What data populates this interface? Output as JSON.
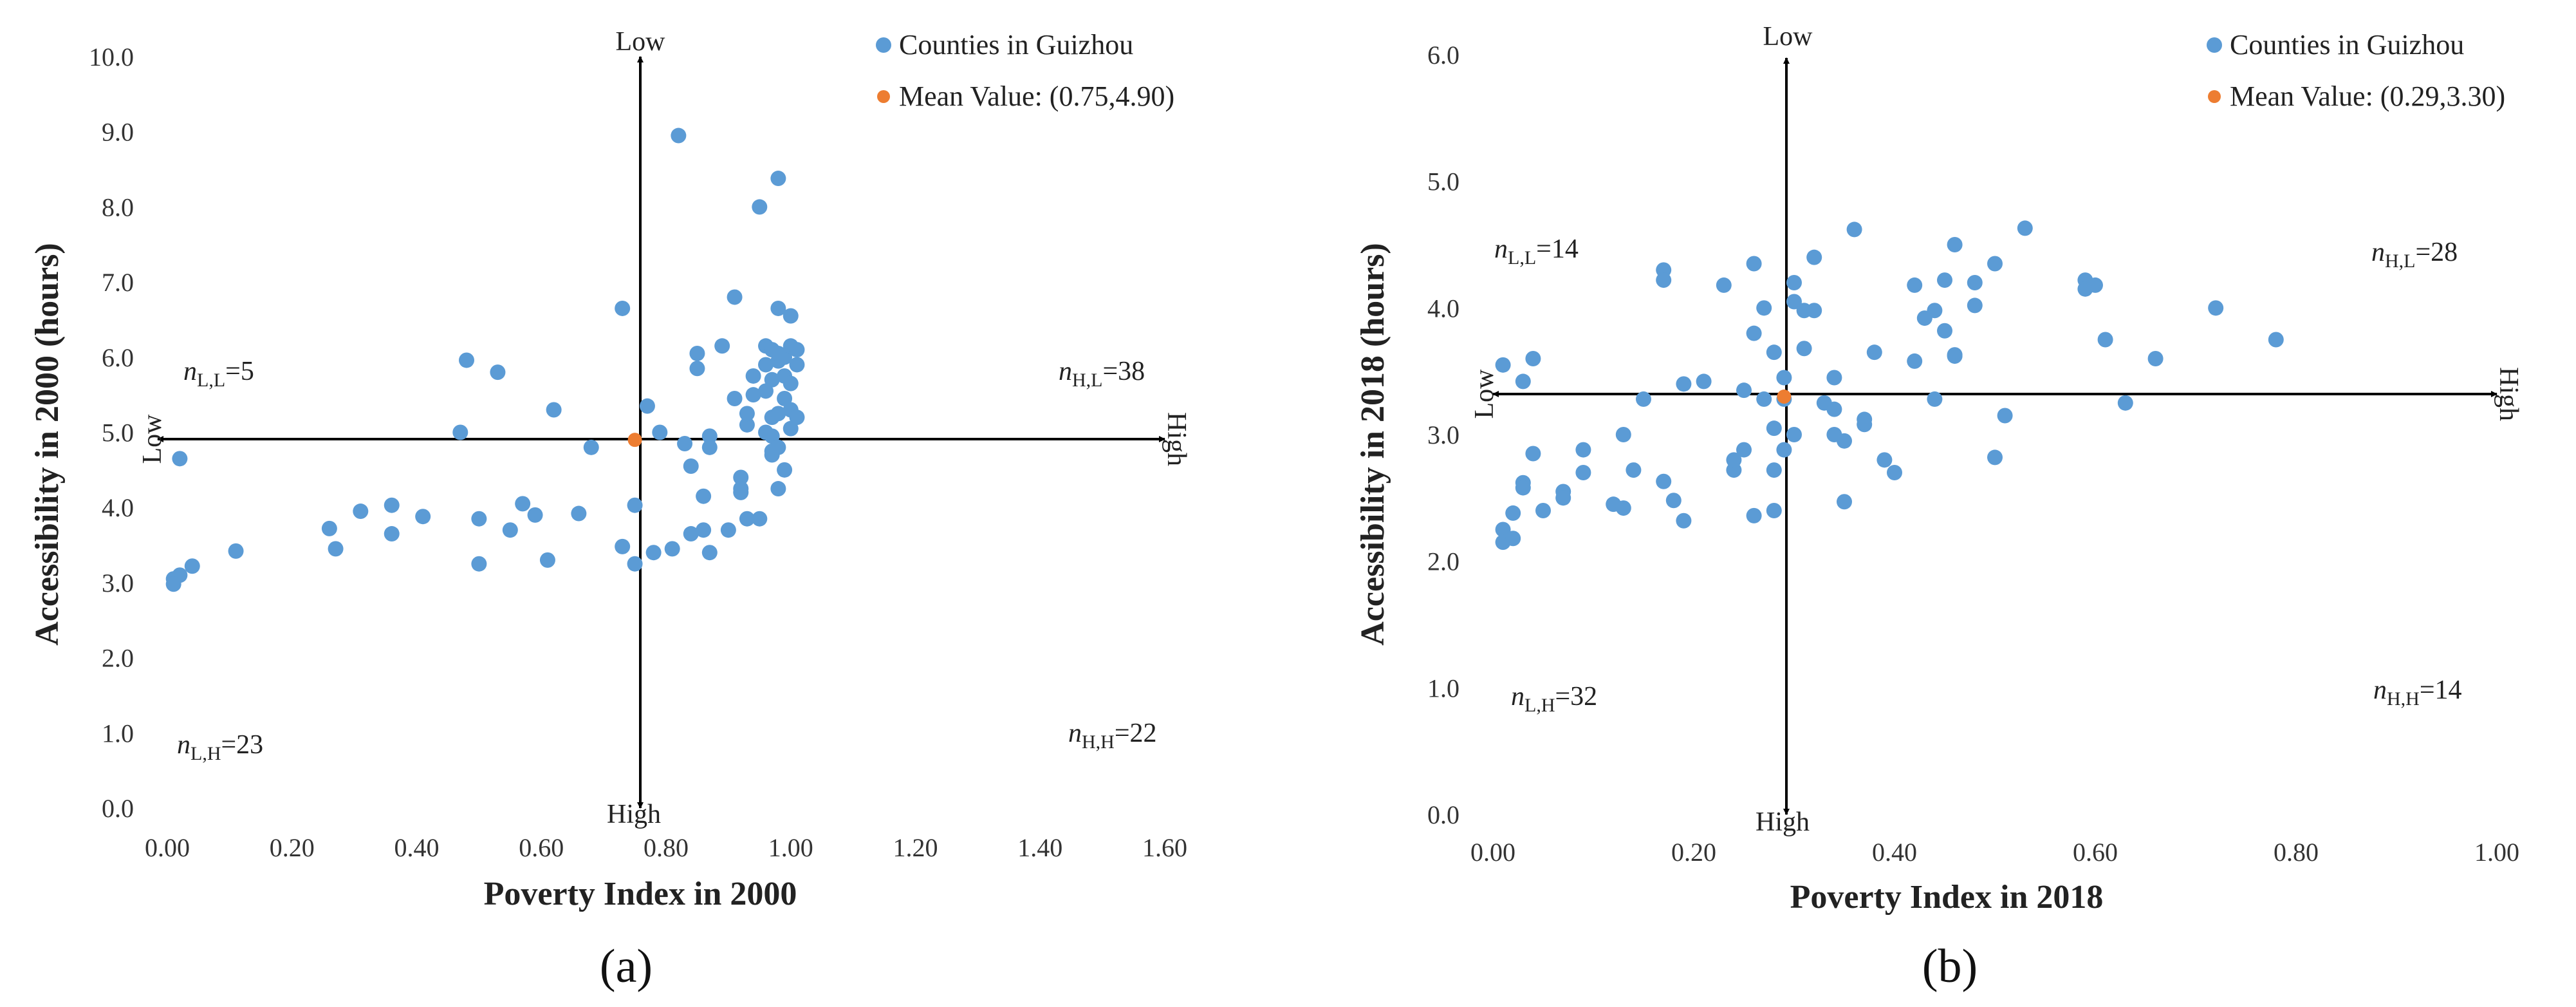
{
  "chart_data": [
    {
      "type": "scatter",
      "panel_label": "(a)",
      "xlabel": "Poverty Index in 2000",
      "ylabel": "Accessibility in 2000 (hours)",
      "xlim": [
        0,
        1.6
      ],
      "ylim": [
        0,
        10
      ],
      "xticks": [
        "0.00",
        "0.20",
        "0.40",
        "0.60",
        "0.80",
        "1.00",
        "1.20",
        "1.40",
        "1.60"
      ],
      "yticks": [
        "0.0",
        "1.0",
        "2.0",
        "3.0",
        "4.0",
        "5.0",
        "6.0",
        "7.0",
        "8.0",
        "9.0",
        "10.0"
      ],
      "legend": {
        "series": "Counties in Guizhou",
        "mean": "Mean Value: (0.75,4.90)",
        "position": "top-right"
      },
      "colors": {
        "series": "#5B9BD5",
        "mean": "#ED7D31"
      },
      "mean": {
        "x": 0.75,
        "y": 4.9
      },
      "direction_labels": {
        "top": "Low",
        "bottom": "High",
        "left": "Low",
        "right": "High"
      },
      "quadrants": {
        "LL": {
          "n": "n",
          "sub": "L,L",
          "val": "=5"
        },
        "HL": {
          "n": "n",
          "sub": "H,L",
          "val": "=38"
        },
        "LH": {
          "n": "n",
          "sub": "L,H",
          "val": "=23"
        },
        "HH": {
          "n": "n",
          "sub": "H,H",
          "val": "=22"
        }
      },
      "points": [
        [
          0.01,
          3.05
        ],
        [
          0.02,
          3.1
        ],
        [
          0.01,
          2.98
        ],
        [
          0.04,
          3.22
        ],
        [
          0.02,
          4.65
        ],
        [
          0.11,
          3.42
        ],
        [
          0.26,
          3.72
        ],
        [
          0.27,
          3.45
        ],
        [
          0.31,
          3.95
        ],
        [
          0.36,
          4.03
        ],
        [
          0.36,
          3.65
        ],
        [
          0.41,
          3.88
        ],
        [
          0.47,
          5.0
        ],
        [
          0.48,
          5.96
        ],
        [
          0.5,
          3.85
        ],
        [
          0.5,
          3.25
        ],
        [
          0.53,
          5.8
        ],
        [
          0.55,
          3.7
        ],
        [
          0.57,
          4.05
        ],
        [
          0.59,
          3.9
        ],
        [
          0.61,
          3.3
        ],
        [
          0.62,
          5.3
        ],
        [
          0.66,
          3.92
        ],
        [
          0.68,
          4.8
        ],
        [
          0.73,
          6.65
        ],
        [
          0.73,
          3.48
        ],
        [
          0.75,
          4.03
        ],
        [
          0.75,
          3.25
        ],
        [
          0.77,
          5.35
        ],
        [
          0.78,
          3.4
        ],
        [
          0.79,
          5.0
        ],
        [
          0.81,
          3.45
        ],
        [
          0.82,
          8.95
        ],
        [
          0.83,
          4.85
        ],
        [
          0.84,
          4.55
        ],
        [
          0.84,
          3.65
        ],
        [
          0.85,
          5.85
        ],
        [
          0.85,
          6.05
        ],
        [
          0.86,
          4.15
        ],
        [
          0.86,
          3.7
        ],
        [
          0.87,
          3.4
        ],
        [
          0.87,
          4.95
        ],
        [
          0.87,
          4.8
        ],
        [
          0.89,
          6.15
        ],
        [
          0.9,
          3.7
        ],
        [
          0.91,
          6.8
        ],
        [
          0.91,
          5.45
        ],
        [
          0.92,
          4.4
        ],
        [
          0.92,
          4.25
        ],
        [
          0.92,
          4.2
        ],
        [
          0.93,
          5.1
        ],
        [
          0.93,
          5.25
        ],
        [
          0.93,
          3.85
        ],
        [
          0.94,
          5.75
        ],
        [
          0.94,
          5.5
        ],
        [
          0.95,
          8.0
        ],
        [
          0.95,
          3.85
        ],
        [
          0.96,
          5.9
        ],
        [
          0.96,
          5.55
        ],
        [
          0.96,
          6.15
        ],
        [
          0.96,
          5.0
        ],
        [
          0.97,
          4.75
        ],
        [
          0.97,
          4.7
        ],
        [
          0.97,
          5.7
        ],
        [
          0.97,
          6.1
        ],
        [
          0.97,
          4.95
        ],
        [
          0.97,
          5.2
        ],
        [
          0.98,
          8.38
        ],
        [
          0.98,
          6.65
        ],
        [
          0.98,
          5.95
        ],
        [
          0.98,
          6.05
        ],
        [
          0.98,
          5.25
        ],
        [
          0.98,
          4.8
        ],
        [
          0.98,
          4.25
        ],
        [
          0.99,
          6.0
        ],
        [
          0.99,
          5.45
        ],
        [
          0.99,
          5.75
        ],
        [
          0.99,
          4.5
        ],
        [
          1.0,
          6.15
        ],
        [
          1.0,
          6.55
        ],
        [
          1.0,
          5.3
        ],
        [
          1.0,
          5.65
        ],
        [
          1.0,
          5.05
        ],
        [
          1.01,
          6.1
        ],
        [
          1.01,
          5.9
        ],
        [
          1.01,
          5.2
        ]
      ]
    },
    {
      "type": "scatter",
      "panel_label": "(b)",
      "xlabel": "Poverty Index in 2018",
      "ylabel": "Accessibility in 2018 (hours)",
      "xlim": [
        0,
        1
      ],
      "ylim": [
        0,
        6
      ],
      "xticks": [
        "0.00",
        "0.20",
        "0.40",
        "0.60",
        "0.80",
        "1.00"
      ],
      "yticks": [
        "0.0",
        "1.0",
        "2.0",
        "3.0",
        "4.0",
        "5.0",
        "6.0"
      ],
      "legend": {
        "series": "Counties in Guizhou",
        "mean": "Mean Value: (0.29,3.30)",
        "position": "top-right"
      },
      "colors": {
        "series": "#5B9BD5",
        "mean": "#ED7D31"
      },
      "mean": {
        "x": 0.29,
        "y": 3.3
      },
      "direction_labels": {
        "top": "Low",
        "bottom": "High",
        "left": "Low",
        "right": "High"
      },
      "quadrants": {
        "LL": {
          "n": "n",
          "sub": "L,L",
          "val": "=14"
        },
        "HL": {
          "n": "n",
          "sub": "H,L",
          "val": "=28"
        },
        "LH": {
          "n": "n",
          "sub": "L,H",
          "val": "=32"
        },
        "HH": {
          "n": "n",
          "sub": "H,H",
          "val": "=14"
        }
      },
      "points": [
        [
          0.01,
          3.55
        ],
        [
          0.01,
          2.25
        ],
        [
          0.01,
          2.15
        ],
        [
          0.02,
          2.38
        ],
        [
          0.02,
          2.18
        ],
        [
          0.03,
          3.42
        ],
        [
          0.03,
          2.62
        ],
        [
          0.03,
          2.58
        ],
        [
          0.04,
          3.6
        ],
        [
          0.04,
          2.85
        ],
        [
          0.05,
          2.4
        ],
        [
          0.07,
          2.55
        ],
        [
          0.07,
          2.5
        ],
        [
          0.09,
          2.88
        ],
        [
          0.09,
          2.7
        ],
        [
          0.12,
          2.45
        ],
        [
          0.13,
          2.42
        ],
        [
          0.13,
          3.0
        ],
        [
          0.14,
          2.72
        ],
        [
          0.15,
          3.28
        ],
        [
          0.17,
          4.3
        ],
        [
          0.17,
          4.22
        ],
        [
          0.17,
          2.63
        ],
        [
          0.18,
          2.48
        ],
        [
          0.19,
          3.4
        ],
        [
          0.19,
          2.32
        ],
        [
          0.21,
          3.42
        ],
        [
          0.23,
          4.18
        ],
        [
          0.24,
          2.72
        ],
        [
          0.24,
          2.8
        ],
        [
          0.25,
          3.35
        ],
        [
          0.25,
          2.88
        ],
        [
          0.26,
          4.35
        ],
        [
          0.26,
          3.8
        ],
        [
          0.26,
          2.36
        ],
        [
          0.27,
          3.28
        ],
        [
          0.27,
          4.0
        ],
        [
          0.28,
          3.05
        ],
        [
          0.28,
          3.65
        ],
        [
          0.28,
          2.72
        ],
        [
          0.28,
          2.4
        ],
        [
          0.29,
          3.45
        ],
        [
          0.29,
          3.28
        ],
        [
          0.29,
          2.88
        ],
        [
          0.3,
          4.2
        ],
        [
          0.3,
          4.05
        ],
        [
          0.3,
          3.0
        ],
        [
          0.31,
          3.98
        ],
        [
          0.31,
          3.68
        ],
        [
          0.32,
          4.4
        ],
        [
          0.32,
          3.98
        ],
        [
          0.33,
          3.25
        ],
        [
          0.34,
          3.45
        ],
        [
          0.34,
          3.2
        ],
        [
          0.34,
          3.0
        ],
        [
          0.35,
          2.47
        ],
        [
          0.35,
          2.95
        ],
        [
          0.36,
          4.62
        ],
        [
          0.37,
          3.12
        ],
        [
          0.37,
          3.08
        ],
        [
          0.38,
          3.65
        ],
        [
          0.39,
          2.8
        ],
        [
          0.4,
          2.7
        ],
        [
          0.42,
          4.18
        ],
        [
          0.42,
          3.58
        ],
        [
          0.43,
          3.92
        ],
        [
          0.44,
          3.98
        ],
        [
          0.44,
          3.28
        ],
        [
          0.45,
          4.22
        ],
        [
          0.45,
          3.82
        ],
        [
          0.46,
          4.5
        ],
        [
          0.46,
          3.63
        ],
        [
          0.46,
          3.62
        ],
        [
          0.48,
          4.2
        ],
        [
          0.48,
          4.02
        ],
        [
          0.5,
          4.35
        ],
        [
          0.5,
          2.82
        ],
        [
          0.51,
          3.15
        ],
        [
          0.53,
          4.63
        ],
        [
          0.59,
          4.22
        ],
        [
          0.59,
          4.15
        ],
        [
          0.6,
          4.18
        ],
        [
          0.61,
          3.75
        ],
        [
          0.63,
          3.25
        ],
        [
          0.66,
          3.6
        ],
        [
          0.72,
          4.0
        ],
        [
          0.78,
          3.75
        ]
      ]
    }
  ]
}
